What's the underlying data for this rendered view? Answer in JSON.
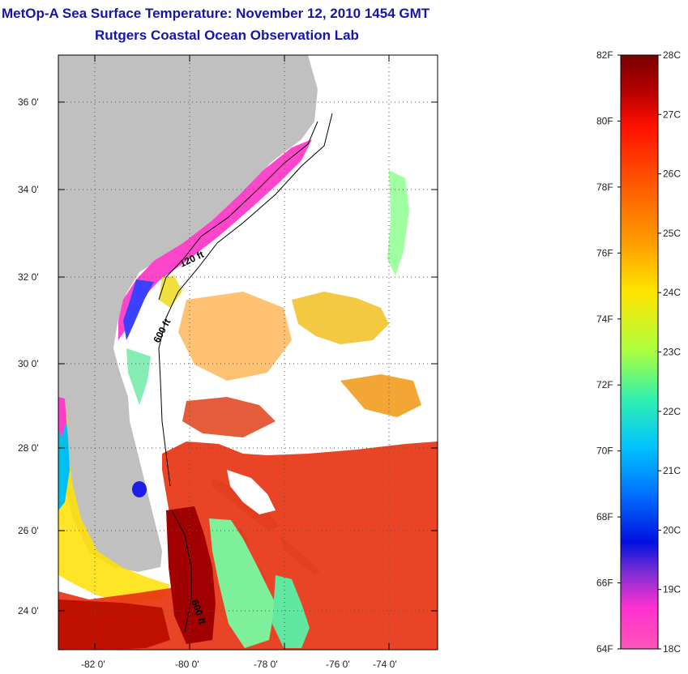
{
  "title_line1": "MetOp-A Sea Surface Temperature:  November 12, 2010 1454 GMT",
  "title_line2": "Rutgers Coastal Ocean Observation Lab",
  "map": {
    "lat_labels": [
      "36 0'",
      "34 0'",
      "32 0'",
      "30 0'",
      "28 0'",
      "26 0'",
      "24 0'"
    ],
    "lon_labels": [
      "-82 0'",
      "-80 0'",
      "-78 0'",
      "-76 0'",
      "-74 0'"
    ],
    "contour_labels": [
      "120 ft",
      "600 ft",
      "600 ft"
    ],
    "land_color": "#c0c0c0"
  },
  "colorbar": {
    "fahrenheit_labels": [
      "82F",
      "80F",
      "78F",
      "76F",
      "74F",
      "72F",
      "70F",
      "68F",
      "66F",
      "64F"
    ],
    "celsius_labels": [
      "28C",
      "27C",
      "26C",
      "25C",
      "24C",
      "23C",
      "22C",
      "21C",
      "20C",
      "19C",
      "18C"
    ],
    "colors_top_to_bottom": [
      "#7a0000",
      "#c80000",
      "#ff2a00",
      "#ff7a00",
      "#ffb800",
      "#ffee00",
      "#b8ff3a",
      "#3cf0b0",
      "#00c8ff",
      "#0078ff",
      "#0010e6",
      "#8a30d8",
      "#ff3ccc",
      "#ff5ab8"
    ]
  }
}
